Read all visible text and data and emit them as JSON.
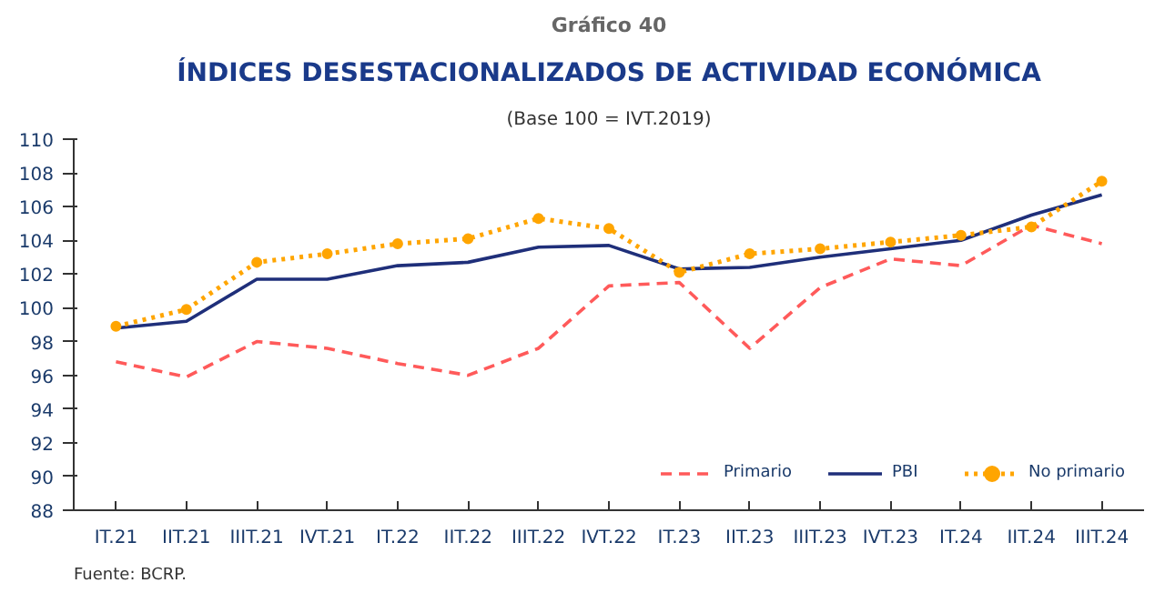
{
  "chart_data": {
    "type": "line",
    "title": "ÍNDICES DESESTACIONALIZADOS DE ACTIVIDAD ECONÓMICA",
    "subtitle": "(Base 100 = IVT.2019)",
    "annotations": [
      "Gráfico 40",
      "Fuente: BCRP."
    ],
    "categories": [
      "IT.21",
      "IIT.21",
      "IIIT.21",
      "IVT.21",
      "IT.22",
      "IIT.22",
      "IIIT.22",
      "IVT.22",
      "IT.23",
      "IIT.23",
      "IIIT.23",
      "IVT.23",
      "IT.24",
      "IIT.24",
      "IIIT.24"
    ],
    "series": [
      {
        "name": "Primario",
        "color": "#ff5a5a",
        "line_style": "dashed",
        "values": [
          96.8,
          95.9,
          98.0,
          97.6,
          96.7,
          96.0,
          97.6,
          101.3,
          101.5,
          97.6,
          101.2,
          102.9,
          102.5,
          104.9,
          103.8
        ]
      },
      {
        "name": "PBI",
        "color": "#1f2f7a",
        "line_style": "solid",
        "values": [
          98.8,
          99.2,
          101.7,
          101.7,
          102.5,
          102.7,
          103.6,
          103.7,
          102.3,
          102.4,
          103.0,
          103.5,
          104.0,
          105.5,
          106.7
        ]
      },
      {
        "name": "No primario",
        "color": "#ffa500",
        "line_style": "dotted",
        "marker": "circle",
        "values": [
          98.9,
          99.9,
          102.7,
          103.2,
          103.8,
          104.1,
          105.3,
          104.7,
          102.1,
          103.2,
          103.5,
          103.9,
          104.3,
          104.8,
          107.5
        ]
      }
    ],
    "ylim": [
      88,
      110
    ],
    "yticks": [
      88,
      90,
      92,
      94,
      96,
      98,
      100,
      102,
      104,
      106,
      108,
      110
    ],
    "grid": false,
    "legend": "bottom right"
  }
}
